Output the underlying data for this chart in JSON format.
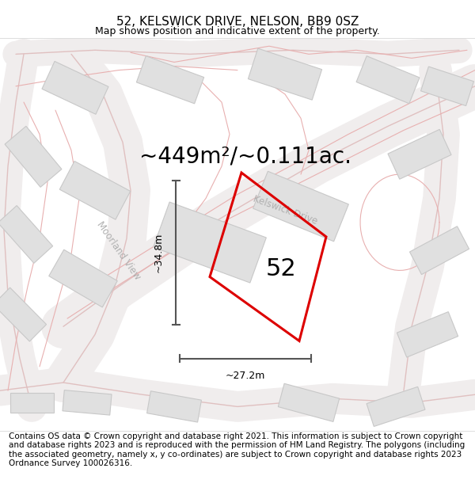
{
  "title": "52, KELSWICK DRIVE, NELSON, BB9 0SZ",
  "subtitle": "Map shows position and indicative extent of the property.",
  "area_label": "~449m²/~0.111ac.",
  "number_label": "52",
  "width_label": "~27.2m",
  "height_label": "~34.8m",
  "footer": "Contains OS data © Crown copyright and database right 2021. This information is subject to Crown copyright and database rights 2023 and is reproduced with the permission of HM Land Registry. The polygons (including the associated geometry, namely x, y co-ordinates) are subject to Crown copyright and database rights 2023 Ordnance Survey 100026316.",
  "map_bg": "#f7f5f5",
  "building_fill": "#e0e0e0",
  "building_edge": "#c8c8c8",
  "road_line_color": "#e8b8b8",
  "road_fill_color": "#ede8e8",
  "property_edge": "#dd0000",
  "dim_color": "#555555",
  "street_label_color": "#b0b0b0",
  "title_fontsize": 11,
  "subtitle_fontsize": 9,
  "area_fontsize": 20,
  "number_fontsize": 22,
  "footer_fontsize": 7.5,
  "dim_fontsize": 9,
  "street_fontsize": 8.5
}
